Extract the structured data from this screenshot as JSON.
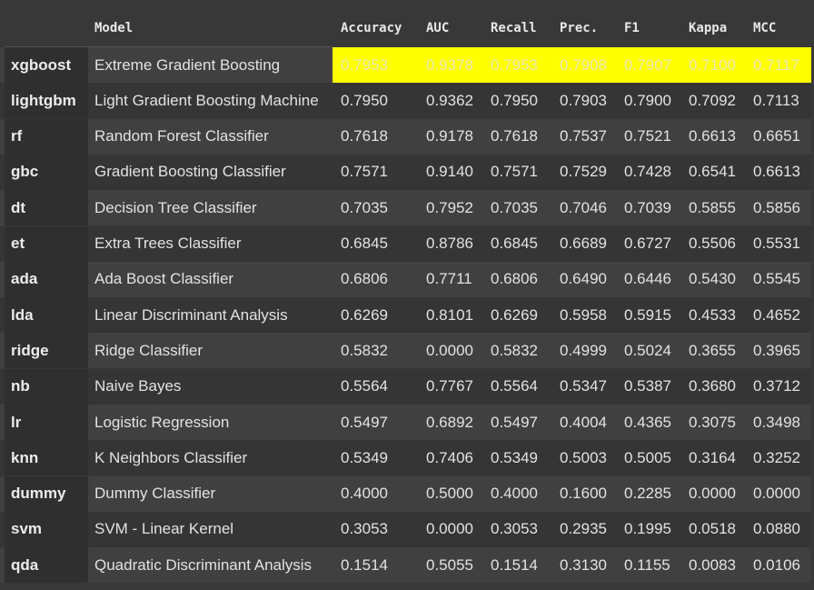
{
  "table": {
    "columns": {
      "model": "Model",
      "accuracy": "Accuracy",
      "auc": "AUC",
      "recall": "Recall",
      "prec": "Prec.",
      "f1": "F1",
      "kappa": "Kappa",
      "mcc": "MCC"
    },
    "highlight_color": "#ffff00",
    "rows": [
      {
        "key": "xgboost",
        "model": "Extreme Gradient Boosting",
        "accuracy": "0.7953",
        "auc": "0.9378",
        "recall": "0.7953",
        "prec": "0.7908",
        "f1": "0.7907",
        "kappa": "0.7100",
        "mcc": "0.7117"
      },
      {
        "key": "lightgbm",
        "model": "Light Gradient Boosting Machine",
        "accuracy": "0.7950",
        "auc": "0.9362",
        "recall": "0.7950",
        "prec": "0.7903",
        "f1": "0.7900",
        "kappa": "0.7092",
        "mcc": "0.7113"
      },
      {
        "key": "rf",
        "model": "Random Forest Classifier",
        "accuracy": "0.7618",
        "auc": "0.9178",
        "recall": "0.7618",
        "prec": "0.7537",
        "f1": "0.7521",
        "kappa": "0.6613",
        "mcc": "0.6651"
      },
      {
        "key": "gbc",
        "model": "Gradient Boosting Classifier",
        "accuracy": "0.7571",
        "auc": "0.9140",
        "recall": "0.7571",
        "prec": "0.7529",
        "f1": "0.7428",
        "kappa": "0.6541",
        "mcc": "0.6613"
      },
      {
        "key": "dt",
        "model": "Decision Tree Classifier",
        "accuracy": "0.7035",
        "auc": "0.7952",
        "recall": "0.7035",
        "prec": "0.7046",
        "f1": "0.7039",
        "kappa": "0.5855",
        "mcc": "0.5856"
      },
      {
        "key": "et",
        "model": "Extra Trees Classifier",
        "accuracy": "0.6845",
        "auc": "0.8786",
        "recall": "0.6845",
        "prec": "0.6689",
        "f1": "0.6727",
        "kappa": "0.5506",
        "mcc": "0.5531"
      },
      {
        "key": "ada",
        "model": "Ada Boost Classifier",
        "accuracy": "0.6806",
        "auc": "0.7711",
        "recall": "0.6806",
        "prec": "0.6490",
        "f1": "0.6446",
        "kappa": "0.5430",
        "mcc": "0.5545"
      },
      {
        "key": "lda",
        "model": "Linear Discriminant Analysis",
        "accuracy": "0.6269",
        "auc": "0.8101",
        "recall": "0.6269",
        "prec": "0.5958",
        "f1": "0.5915",
        "kappa": "0.4533",
        "mcc": "0.4652"
      },
      {
        "key": "ridge",
        "model": "Ridge Classifier",
        "accuracy": "0.5832",
        "auc": "0.0000",
        "recall": "0.5832",
        "prec": "0.4999",
        "f1": "0.5024",
        "kappa": "0.3655",
        "mcc": "0.3965"
      },
      {
        "key": "nb",
        "model": "Naive Bayes",
        "accuracy": "0.5564",
        "auc": "0.7767",
        "recall": "0.5564",
        "prec": "0.5347",
        "f1": "0.5387",
        "kappa": "0.3680",
        "mcc": "0.3712"
      },
      {
        "key": "lr",
        "model": "Logistic Regression",
        "accuracy": "0.5497",
        "auc": "0.6892",
        "recall": "0.5497",
        "prec": "0.4004",
        "f1": "0.4365",
        "kappa": "0.3075",
        "mcc": "0.3498"
      },
      {
        "key": "knn",
        "model": "K Neighbors Classifier",
        "accuracy": "0.5349",
        "auc": "0.7406",
        "recall": "0.5349",
        "prec": "0.5003",
        "f1": "0.5005",
        "kappa": "0.3164",
        "mcc": "0.3252"
      },
      {
        "key": "dummy",
        "model": "Dummy Classifier",
        "accuracy": "0.4000",
        "auc": "0.5000",
        "recall": "0.4000",
        "prec": "0.1600",
        "f1": "0.2285",
        "kappa": "0.0000",
        "mcc": "0.0000"
      },
      {
        "key": "svm",
        "model": "SVM - Linear Kernel",
        "accuracy": "0.3053",
        "auc": "0.0000",
        "recall": "0.3053",
        "prec": "0.2935",
        "f1": "0.1995",
        "kappa": "0.0518",
        "mcc": "0.0880"
      },
      {
        "key": "qda",
        "model": "Quadratic Discriminant Analysis",
        "accuracy": "0.1514",
        "auc": "0.5055",
        "recall": "0.1514",
        "prec": "0.3130",
        "f1": "0.1155",
        "kappa": "0.0083",
        "mcc": "0.0106"
      }
    ]
  }
}
